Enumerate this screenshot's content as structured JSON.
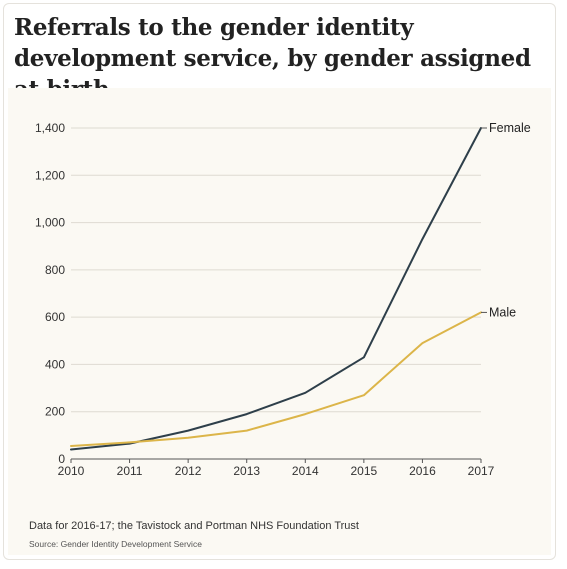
{
  "title": "Referrals to the gender identity development service, by gender assigned at birth",
  "note": "Data for 2016-17; the Tavistock and Portman NHS Foundation Trust",
  "source": "Source: Gender Identity Development Service",
  "chart_data": {
    "type": "line",
    "title": "Referrals to the gender identity development service, by gender assigned at birth",
    "xlabel": "",
    "ylabel": "",
    "x": [
      2010,
      2011,
      2012,
      2013,
      2014,
      2015,
      2016,
      2017
    ],
    "ylim": [
      0,
      1400
    ],
    "yticks": [
      0,
      200,
      400,
      600,
      800,
      1000,
      1200,
      1400
    ],
    "ytick_labels": [
      "0",
      "200",
      "400",
      "600",
      "800",
      "1,000",
      "1,200",
      "1,400"
    ],
    "xtick_labels": [
      "2010",
      "2011",
      "2012",
      "2013",
      "2014",
      "2015",
      "2016",
      "2017"
    ],
    "grid": "horizontal",
    "legend": "direct labels at line ends",
    "series": [
      {
        "name": "Female",
        "color": "#2e3f4a",
        "values": [
          40,
          65,
          120,
          190,
          280,
          430,
          930,
          1400
        ]
      },
      {
        "name": "Male",
        "color": "#dcb549",
        "values": [
          55,
          70,
          90,
          120,
          190,
          270,
          490,
          620
        ]
      }
    ]
  }
}
